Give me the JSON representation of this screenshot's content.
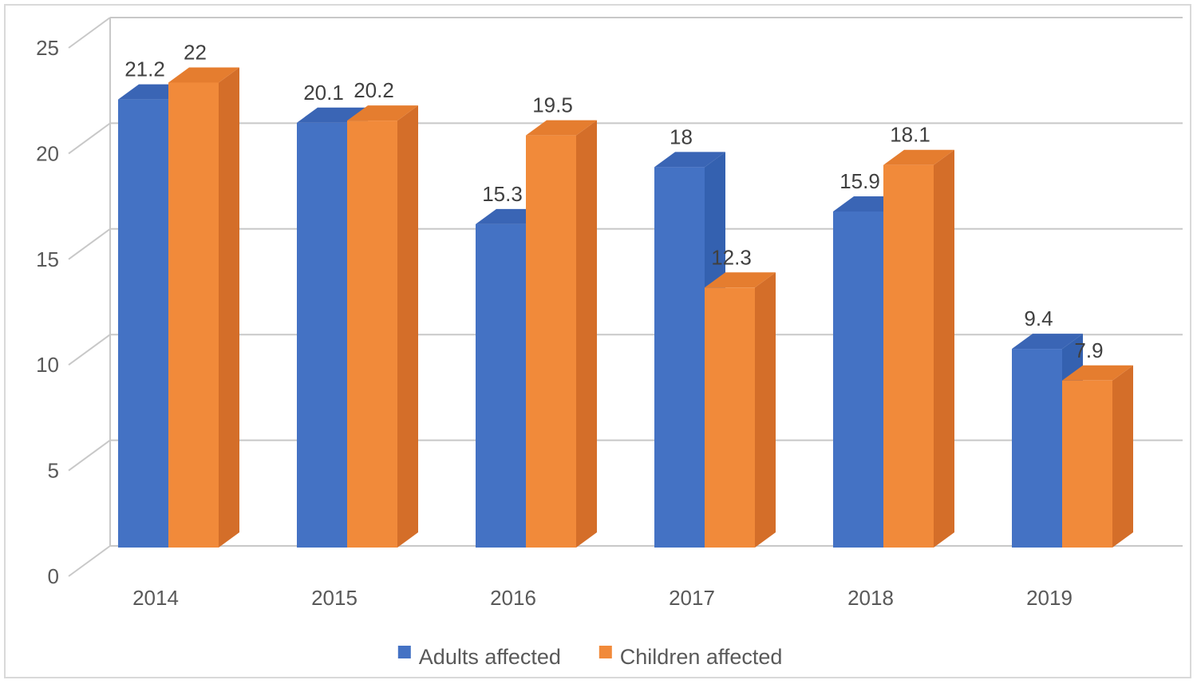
{
  "chart_data": {
    "type": "bar",
    "style": "3d-clustered-column",
    "title": "",
    "xlabel": "",
    "ylabel": "",
    "categories": [
      "2014",
      "2015",
      "2016",
      "2017",
      "2018",
      "2019"
    ],
    "series": [
      {
        "name": "Adults affected",
        "values": [
          21.2,
          20.1,
          15.3,
          18,
          15.9,
          9.4
        ],
        "color": "#4472C4",
        "top_color": "#3A65B5",
        "side_color": "#3461B0"
      },
      {
        "name": "Children affected",
        "values": [
          22,
          20.2,
          19.5,
          12.3,
          18.1,
          7.9
        ],
        "color": "#F18A3A",
        "top_color": "#E57D2F",
        "side_color": "#D46E29"
      }
    ],
    "ylim": [
      0,
      25
    ],
    "yticks": [
      0,
      5,
      10,
      15,
      20,
      25
    ],
    "grid": true,
    "data_labels": true,
    "legend_position": "bottom"
  }
}
